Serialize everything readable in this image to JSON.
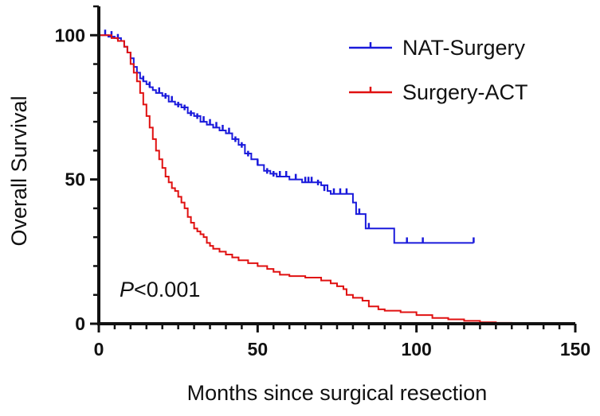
{
  "chart_data": {
    "type": "line",
    "title": "",
    "xlabel": "Months since surgical resection",
    "ylabel": "Overall Survival",
    "xlim": [
      0,
      150
    ],
    "ylim": [
      0,
      110
    ],
    "xticks": [
      0,
      50,
      100,
      150
    ],
    "yticks": [
      0,
      50,
      100
    ],
    "x_minor_step": 5,
    "y_minor_step": 10,
    "annotation": {
      "italic": "P",
      "rest": "<0.001"
    },
    "legend_position": "top-right",
    "series": [
      {
        "name": "NAT-Surgery",
        "color": "#1a1adb",
        "step": [
          [
            0,
            100
          ],
          [
            3,
            99.5
          ],
          [
            5,
            99
          ],
          [
            7,
            98
          ],
          [
            8,
            96
          ],
          [
            9,
            94
          ],
          [
            10,
            92
          ],
          [
            11,
            89
          ],
          [
            12,
            87
          ],
          [
            13,
            85
          ],
          [
            14,
            84
          ],
          [
            15,
            83
          ],
          [
            16,
            82
          ],
          [
            17,
            81
          ],
          [
            18,
            80
          ],
          [
            20,
            79
          ],
          [
            22,
            77
          ],
          [
            24,
            76
          ],
          [
            26,
            75
          ],
          [
            28,
            73
          ],
          [
            30,
            72
          ],
          [
            32,
            70
          ],
          [
            34,
            69
          ],
          [
            36,
            68
          ],
          [
            38,
            67
          ],
          [
            40,
            66
          ],
          [
            42,
            64
          ],
          [
            44,
            62
          ],
          [
            46,
            59
          ],
          [
            48,
            57
          ],
          [
            50,
            55
          ],
          [
            52,
            53
          ],
          [
            54,
            52
          ],
          [
            56,
            51
          ],
          [
            58,
            51
          ],
          [
            60,
            50
          ],
          [
            63,
            50
          ],
          [
            64,
            49
          ],
          [
            68,
            49
          ],
          [
            70,
            48
          ],
          [
            72,
            46
          ],
          [
            73,
            45
          ],
          [
            79,
            45
          ],
          [
            80,
            42
          ],
          [
            81,
            38
          ],
          [
            83,
            38
          ],
          [
            84,
            33
          ],
          [
            86,
            33
          ],
          [
            92,
            33
          ],
          [
            93,
            28
          ],
          [
            118,
            28
          ]
        ],
        "censor": [
          [
            2,
            100
          ],
          [
            4,
            99.5
          ],
          [
            6,
            98.5
          ],
          [
            14,
            84
          ],
          [
            16,
            82
          ],
          [
            19,
            80
          ],
          [
            21,
            78
          ],
          [
            23,
            77
          ],
          [
            25,
            75
          ],
          [
            27,
            74
          ],
          [
            29,
            72
          ],
          [
            31,
            71
          ],
          [
            33,
            70
          ],
          [
            35,
            69
          ],
          [
            37,
            68
          ],
          [
            39,
            67
          ],
          [
            41,
            66
          ],
          [
            43,
            63
          ],
          [
            45,
            61
          ],
          [
            47,
            58
          ],
          [
            50,
            55
          ],
          [
            53,
            52
          ],
          [
            55,
            51
          ],
          [
            57,
            51
          ],
          [
            59,
            51
          ],
          [
            62,
            50
          ],
          [
            65,
            49
          ],
          [
            66,
            49
          ],
          [
            67,
            49
          ],
          [
            69,
            48
          ],
          [
            71,
            46
          ],
          [
            74,
            45
          ],
          [
            76,
            45
          ],
          [
            78,
            45
          ],
          [
            82,
            38
          ],
          [
            85,
            33
          ],
          [
            97,
            28
          ],
          [
            102,
            28
          ],
          [
            118,
            28
          ]
        ]
      },
      {
        "name": "Surgery-ACT",
        "color": "#e01010",
        "step": [
          [
            0,
            100
          ],
          [
            4,
            99
          ],
          [
            6,
            98
          ],
          [
            8,
            96
          ],
          [
            9,
            94
          ],
          [
            10,
            90
          ],
          [
            11,
            87
          ],
          [
            12,
            84
          ],
          [
            13,
            80
          ],
          [
            14,
            76
          ],
          [
            15,
            72
          ],
          [
            16,
            68
          ],
          [
            17,
            64
          ],
          [
            18,
            60
          ],
          [
            19,
            57
          ],
          [
            20,
            54
          ],
          [
            21,
            51
          ],
          [
            22,
            49
          ],
          [
            23,
            47
          ],
          [
            24,
            46
          ],
          [
            25,
            44
          ],
          [
            26,
            42
          ],
          [
            27,
            40
          ],
          [
            28,
            37
          ],
          [
            29,
            35
          ],
          [
            30,
            33
          ],
          [
            31,
            32
          ],
          [
            32,
            31
          ],
          [
            33,
            30
          ],
          [
            34,
            28
          ],
          [
            35,
            27
          ],
          [
            36,
            26
          ],
          [
            38,
            25
          ],
          [
            40,
            24
          ],
          [
            42,
            23
          ],
          [
            44,
            22
          ],
          [
            47,
            21
          ],
          [
            50,
            20
          ],
          [
            53,
            19
          ],
          [
            55,
            18
          ],
          [
            57,
            17
          ],
          [
            60,
            16.5
          ],
          [
            65,
            16
          ],
          [
            70,
            15
          ],
          [
            73,
            14
          ],
          [
            75,
            13
          ],
          [
            77,
            12
          ],
          [
            78,
            10
          ],
          [
            80,
            9
          ],
          [
            83,
            8
          ],
          [
            85,
            6
          ],
          [
            88,
            5
          ],
          [
            90,
            4.5
          ],
          [
            95,
            4
          ],
          [
            100,
            3
          ],
          [
            105,
            2
          ],
          [
            110,
            1.5
          ],
          [
            115,
            1
          ],
          [
            120,
            0.5
          ],
          [
            125,
            0.3
          ],
          [
            130,
            0.2
          ],
          [
            138,
            0.2
          ]
        ],
        "censor": []
      }
    ]
  }
}
